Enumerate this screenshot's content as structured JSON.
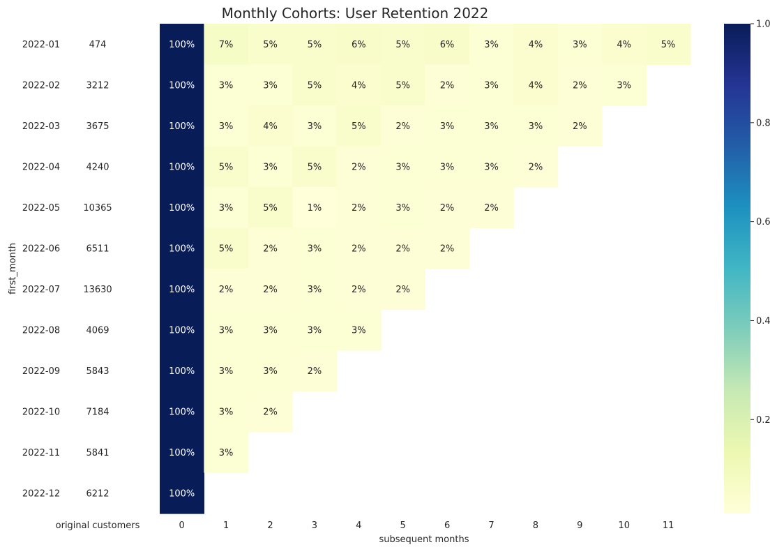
{
  "chart_data": {
    "type": "heatmap",
    "title": "Monthly Cohorts: User Retention 2022",
    "ylabel": "first_month",
    "xlabel": "subsequent months",
    "left_column_label": "original customers",
    "rows": [
      "2022-01",
      "2022-02",
      "2022-03",
      "2022-04",
      "2022-05",
      "2022-06",
      "2022-07",
      "2022-08",
      "2022-09",
      "2022-10",
      "2022-11",
      "2022-12"
    ],
    "original_customers": [
      474,
      3212,
      3675,
      4240,
      10365,
      6511,
      13630,
      4069,
      5843,
      7184,
      5841,
      6212
    ],
    "columns": [
      "0",
      "1",
      "2",
      "3",
      "4",
      "5",
      "6",
      "7",
      "8",
      "9",
      "10",
      "11"
    ],
    "values": [
      [
        1.0,
        0.07,
        0.05,
        0.05,
        0.06,
        0.05,
        0.06,
        0.03,
        0.04,
        0.03,
        0.04,
        0.05
      ],
      [
        1.0,
        0.03,
        0.03,
        0.05,
        0.04,
        0.05,
        0.02,
        0.03,
        0.04,
        0.02,
        0.03
      ],
      [
        1.0,
        0.03,
        0.04,
        0.03,
        0.05,
        0.02,
        0.03,
        0.03,
        0.03,
        0.02
      ],
      [
        1.0,
        0.05,
        0.03,
        0.05,
        0.02,
        0.03,
        0.03,
        0.03,
        0.02
      ],
      [
        1.0,
        0.03,
        0.05,
        0.01,
        0.02,
        0.03,
        0.02,
        0.02
      ],
      [
        1.0,
        0.05,
        0.02,
        0.03,
        0.02,
        0.02,
        0.02
      ],
      [
        1.0,
        0.02,
        0.02,
        0.03,
        0.02,
        0.02
      ],
      [
        1.0,
        0.03,
        0.03,
        0.03,
        0.03
      ],
      [
        1.0,
        0.03,
        0.03,
        0.02
      ],
      [
        1.0,
        0.03,
        0.02
      ],
      [
        1.0,
        0.03
      ],
      [
        1.0
      ]
    ],
    "value_labels": [
      [
        "100%",
        "7%",
        "5%",
        "5%",
        "6%",
        "5%",
        "6%",
        "3%",
        "4%",
        "3%",
        "4%",
        "5%"
      ],
      [
        "100%",
        "3%",
        "3%",
        "5%",
        "4%",
        "5%",
        "2%",
        "3%",
        "4%",
        "2%",
        "3%"
      ],
      [
        "100%",
        "3%",
        "4%",
        "3%",
        "5%",
        "2%",
        "3%",
        "3%",
        "3%",
        "2%"
      ],
      [
        "100%",
        "5%",
        "3%",
        "5%",
        "2%",
        "3%",
        "3%",
        "3%",
        "2%"
      ],
      [
        "100%",
        "3%",
        "5%",
        "1%",
        "2%",
        "3%",
        "2%",
        "2%"
      ],
      [
        "100%",
        "5%",
        "2%",
        "3%",
        "2%",
        "2%",
        "2%"
      ],
      [
        "100%",
        "2%",
        "2%",
        "3%",
        "2%",
        "2%"
      ],
      [
        "100%",
        "3%",
        "3%",
        "3%",
        "3%"
      ],
      [
        "100%",
        "3%",
        "3%",
        "2%"
      ],
      [
        "100%",
        "3%",
        "2%"
      ],
      [
        "100%",
        "3%"
      ],
      [
        "100%"
      ]
    ],
    "colormap": "YlGnBu",
    "colormap_stops": [
      "#ffffd9",
      "#edf8b1",
      "#c7e9b4",
      "#7fcdbb",
      "#41b6c4",
      "#1d91c0",
      "#225ea8",
      "#253494",
      "#081d58"
    ],
    "vmin": 0.01,
    "vmax": 1.0,
    "colorbar_ticks": [
      "0.2",
      "0.4",
      "0.6",
      "0.8",
      "1.0"
    ],
    "colorbar_tick_values": [
      0.2,
      0.4,
      0.6,
      0.8,
      1.0
    ],
    "grid": false
  }
}
